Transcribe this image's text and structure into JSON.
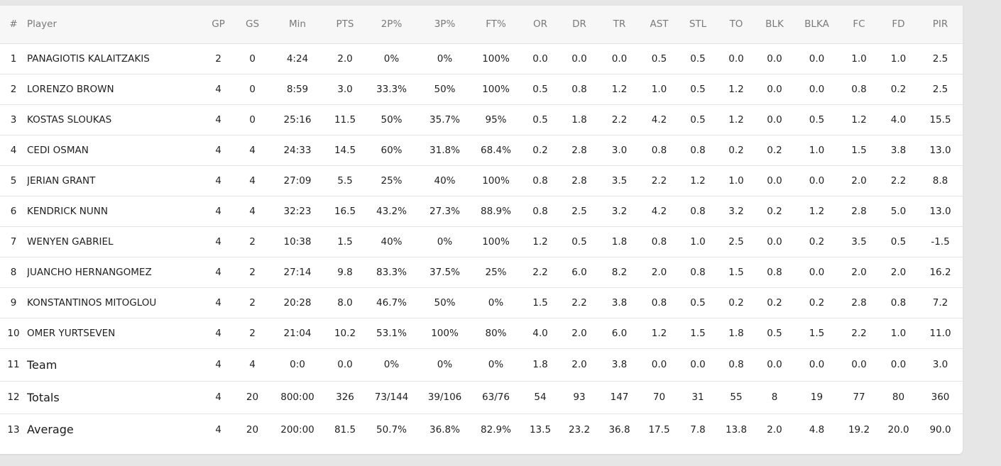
{
  "columns": [
    "#",
    "Player",
    "GP",
    "GS",
    "Min",
    "PTS",
    "2P%",
    "3P%",
    "FT%",
    "OR",
    "DR",
    "TR",
    "AST",
    "STL",
    "TO",
    "BLK",
    "BLKA",
    "FC",
    "FD",
    "PIR"
  ],
  "rows": [
    [
      "1",
      "PANAGIOTIS KALAITZAKIS",
      "2",
      "0",
      "4:24",
      "2.0",
      "0%",
      "0%",
      "100%",
      "0.0",
      "0.0",
      "0.0",
      "0.5",
      "0.5",
      "0.0",
      "0.0",
      "0.0",
      "1.0",
      "1.0",
      "2.5"
    ],
    [
      "2",
      "LORENZO BROWN",
      "4",
      "0",
      "8:59",
      "3.0",
      "33.3%",
      "50%",
      "100%",
      "0.5",
      "0.8",
      "1.2",
      "1.0",
      "0.5",
      "1.2",
      "0.0",
      "0.0",
      "0.8",
      "0.2",
      "2.5"
    ],
    [
      "3",
      "KOSTAS SLOUKAS",
      "4",
      "0",
      "25:16",
      "11.5",
      "50%",
      "35.7%",
      "95%",
      "0.5",
      "1.8",
      "2.2",
      "4.2",
      "0.5",
      "1.2",
      "0.0",
      "0.5",
      "1.2",
      "4.0",
      "15.5"
    ],
    [
      "4",
      "CEDI OSMAN",
      "4",
      "4",
      "24:33",
      "14.5",
      "60%",
      "31.8%",
      "68.4%",
      "0.2",
      "2.8",
      "3.0",
      "0.8",
      "0.8",
      "0.2",
      "0.2",
      "1.0",
      "1.5",
      "3.8",
      "13.0"
    ],
    [
      "5",
      "JERIAN GRANT",
      "4",
      "4",
      "27:09",
      "5.5",
      "25%",
      "40%",
      "100%",
      "0.8",
      "2.8",
      "3.5",
      "2.2",
      "1.2",
      "1.0",
      "0.0",
      "0.0",
      "2.0",
      "2.2",
      "8.8"
    ],
    [
      "6",
      "KENDRICK NUNN",
      "4",
      "4",
      "32:23",
      "16.5",
      "43.2%",
      "27.3%",
      "88.9%",
      "0.8",
      "2.5",
      "3.2",
      "4.2",
      "0.8",
      "3.2",
      "0.2",
      "1.2",
      "2.8",
      "5.0",
      "13.0"
    ],
    [
      "7",
      "WENYEN GABRIEL",
      "4",
      "2",
      "10:38",
      "1.5",
      "40%",
      "0%",
      "100%",
      "1.2",
      "0.5",
      "1.8",
      "0.8",
      "1.0",
      "2.5",
      "0.0",
      "0.2",
      "3.5",
      "0.5",
      "-1.5"
    ],
    [
      "8",
      "JUANCHO HERNANGOMEZ",
      "4",
      "2",
      "27:14",
      "9.8",
      "83.3%",
      "37.5%",
      "25%",
      "2.2",
      "6.0",
      "8.2",
      "2.0",
      "0.8",
      "1.5",
      "0.8",
      "0.0",
      "2.0",
      "2.0",
      "16.2"
    ],
    [
      "9",
      "KONSTANTINOS MITOGLOU",
      "4",
      "2",
      "20:28",
      "8.0",
      "46.7%",
      "50%",
      "0%",
      "1.5",
      "2.2",
      "3.8",
      "0.8",
      "0.5",
      "0.2",
      "0.2",
      "0.2",
      "2.8",
      "0.8",
      "7.2"
    ],
    [
      "10",
      "OMER YURTSEVEN",
      "4",
      "2",
      "21:04",
      "10.2",
      "53.1%",
      "100%",
      "80%",
      "4.0",
      "2.0",
      "6.0",
      "1.2",
      "1.5",
      "1.8",
      "0.5",
      "1.5",
      "2.2",
      "1.0",
      "11.0"
    ],
    [
      "11",
      "Team",
      "4",
      "4",
      "0:0",
      "0.0",
      "0%",
      "0%",
      "0%",
      "1.8",
      "2.0",
      "3.8",
      "0.0",
      "0.0",
      "0.8",
      "0.0",
      "0.0",
      "0.0",
      "0.0",
      "3.0"
    ],
    [
      "12",
      "Totals",
      "4",
      "20",
      "800:00",
      "326",
      "73/144",
      "39/106",
      "63/76",
      "54",
      "93",
      "147",
      "70",
      "31",
      "55",
      "8",
      "19",
      "77",
      "80",
      "360"
    ],
    [
      "13",
      "Average",
      "4",
      "20",
      "200:00",
      "81.5",
      "50.7%",
      "36.8%",
      "82.9%",
      "13.5",
      "23.2",
      "36.8",
      "17.5",
      "7.8",
      "13.8",
      "2.0",
      "4.8",
      "19.2",
      "20.0",
      "90.0"
    ]
  ]
}
